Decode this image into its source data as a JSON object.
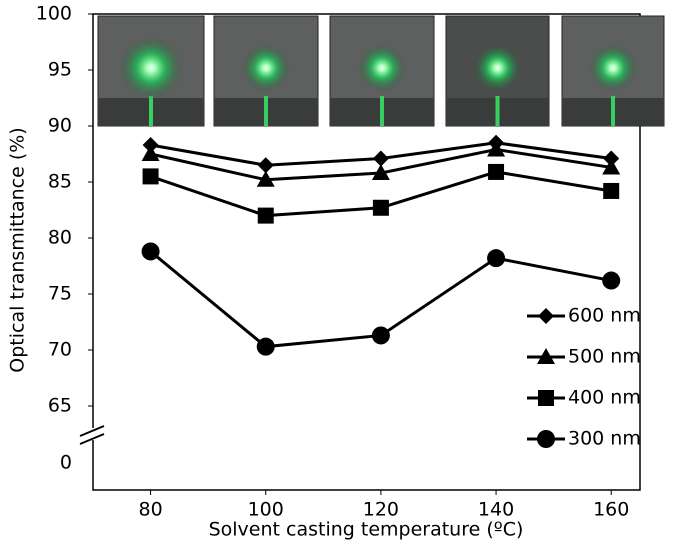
{
  "chart_data": {
    "type": "line",
    "xlabel": "Solvent casting temperature (ºC)",
    "ylabel": "Optical transmittance (%)",
    "x": [
      80,
      100,
      120,
      140,
      160
    ],
    "xlim": [
      70,
      165
    ],
    "xticks": [
      80,
      100,
      120,
      140,
      160
    ],
    "ylim": [
      57.5,
      100
    ],
    "yticks": [
      65,
      70,
      75,
      80,
      85,
      90,
      95,
      100
    ],
    "axis_break_tick": 0,
    "legend": "lower right",
    "series": [
      {
        "name": "600 nm",
        "color": "#000000",
        "marker": "diamond",
        "values": [
          88.3,
          86.5,
          87.1,
          88.5,
          87.1
        ]
      },
      {
        "name": "500 nm",
        "color": "#000000",
        "marker": "triangle",
        "values": [
          87.5,
          85.2,
          85.8,
          87.9,
          86.3
        ]
      },
      {
        "name": "400 nm",
        "color": "#000000",
        "marker": "square",
        "values": [
          85.5,
          82.0,
          82.7,
          85.9,
          84.2
        ]
      },
      {
        "name": "300 nm",
        "color": "#000000",
        "marker": "circle",
        "values": [
          78.8,
          70.3,
          71.3,
          78.2,
          76.2
        ]
      }
    ]
  }
}
